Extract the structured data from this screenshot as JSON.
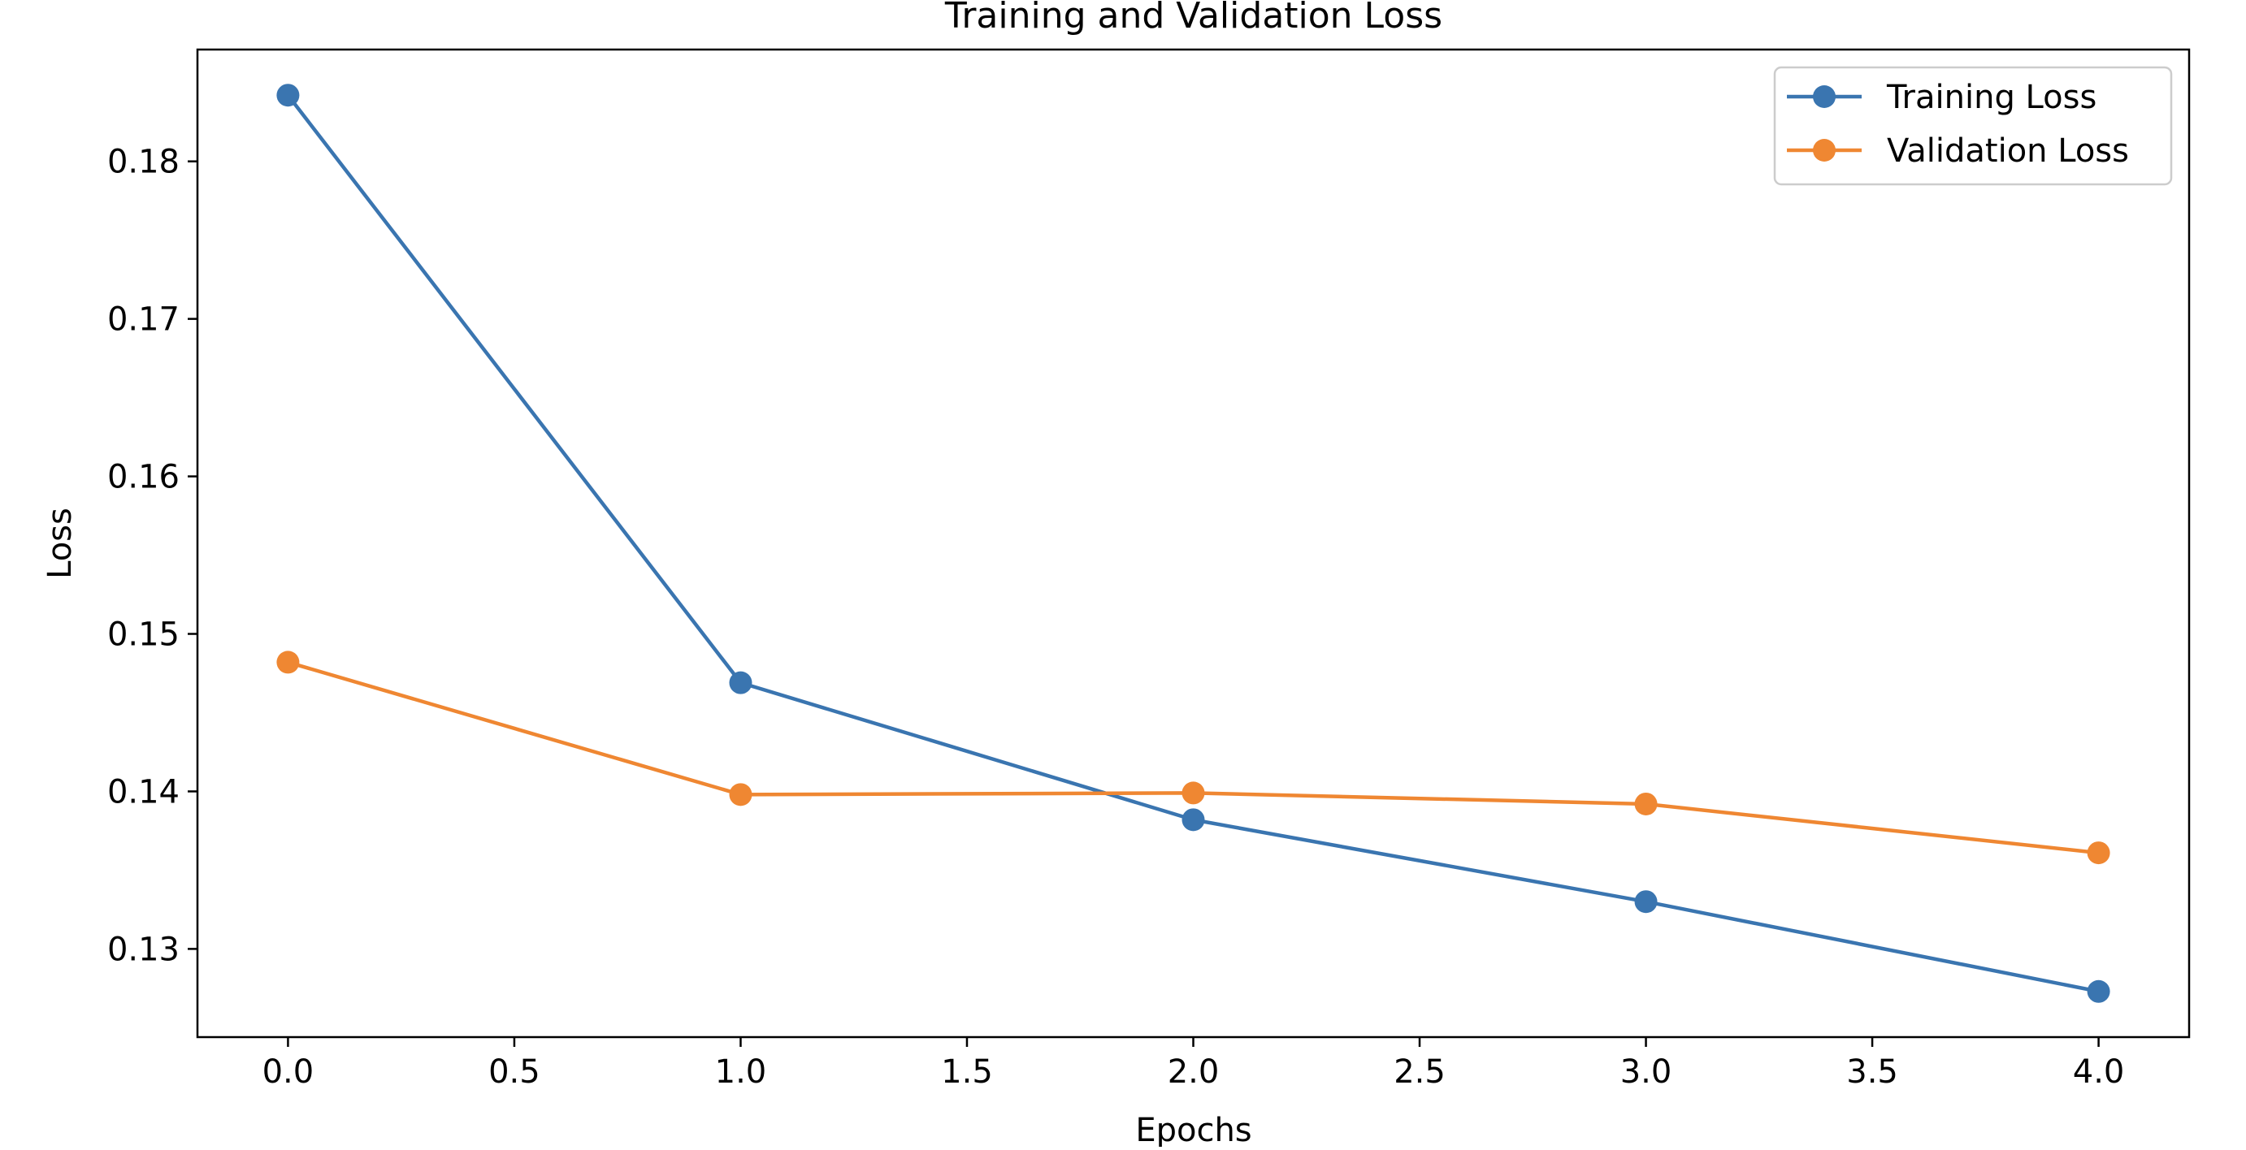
{
  "chart_data": {
    "type": "line",
    "title": "Training and Validation Loss",
    "xlabel": "Epochs",
    "ylabel": "Loss",
    "xlim": [
      -0.2,
      4.2
    ],
    "ylim": [
      0.1244,
      0.1871
    ],
    "xticks": [
      0.0,
      0.5,
      1.0,
      1.5,
      2.0,
      2.5,
      3.0,
      3.5,
      4.0
    ],
    "xtick_labels": [
      "0.0",
      "0.5",
      "1.0",
      "1.5",
      "2.0",
      "2.5",
      "3.0",
      "3.5",
      "4.0"
    ],
    "yticks": [
      0.13,
      0.14,
      0.15,
      0.16,
      0.17,
      0.18
    ],
    "ytick_labels": [
      "0.13",
      "0.14",
      "0.15",
      "0.16",
      "0.17",
      "0.18"
    ],
    "grid": false,
    "legend_position": "top-right",
    "x": [
      0,
      1,
      2,
      3,
      4
    ],
    "series": [
      {
        "name": "Training Loss",
        "color": "#3a75b0",
        "values": [
          0.1842,
          0.1469,
          0.1382,
          0.133,
          0.1273
        ]
      },
      {
        "name": "Validation Loss",
        "color": "#ef8732",
        "values": [
          0.1482,
          0.1398,
          0.1399,
          0.1392,
          0.1361
        ]
      }
    ]
  }
}
